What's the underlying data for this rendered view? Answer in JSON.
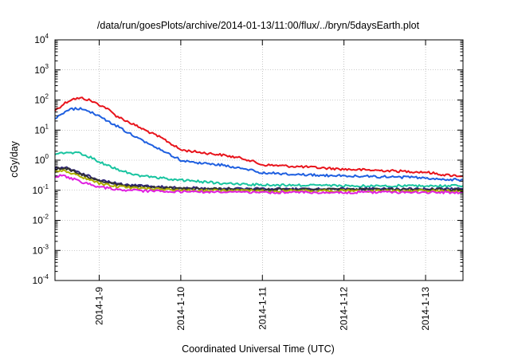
{
  "chart_data": {
    "type": "line",
    "title": "/data/run/goesPlots/archive/2014-01-13/11:00/flux/../bryn/5daysEarth.plot",
    "xlabel": "Coordinated Universal Time (UTC)",
    "ylabel": "cGy/day",
    "yscale": "log",
    "ylim": [
      0.0001,
      10000
    ],
    "xlim": [
      "2014-01-08T11:00",
      "2014-01-13T11:00"
    ],
    "grid": true,
    "legend": "none",
    "y_ticks": [
      {
        "value": 0.0001,
        "base": "10",
        "exp": "-4"
      },
      {
        "value": 0.001,
        "base": "10",
        "exp": "-3"
      },
      {
        "value": 0.01,
        "base": "10",
        "exp": "-2"
      },
      {
        "value": 0.1,
        "base": "10",
        "exp": "-1"
      },
      {
        "value": 1,
        "base": "10",
        "exp": "0"
      },
      {
        "value": 10,
        "base": "10",
        "exp": "1"
      },
      {
        "value": 100,
        "base": "10",
        "exp": "2"
      },
      {
        "value": 1000,
        "base": "10",
        "exp": "3"
      },
      {
        "value": 10000,
        "base": "10",
        "exp": "4"
      }
    ],
    "x_ticks": [
      {
        "value": "2014-01-09T00:00",
        "label": "2014-1-9"
      },
      {
        "value": "2014-01-10T00:00",
        "label": "2014-1-10"
      },
      {
        "value": "2014-01-11T00:00",
        "label": "2014-1-11"
      },
      {
        "value": "2014-01-12T00:00",
        "label": "2014-1-12"
      },
      {
        "value": "2014-01-13T00:00",
        "label": "2014-1-13"
      }
    ],
    "series": [
      {
        "color": "#e8131b",
        "x": [
          "2014-01-08T11:00",
          "2014-01-08T14:00",
          "2014-01-08T16:00",
          "2014-01-08T19:00",
          "2014-01-08T21:00",
          "2014-01-09T00:00",
          "2014-01-09T02:00",
          "2014-01-09T05:00",
          "2014-01-09T12:00",
          "2014-01-09T19:00",
          "2014-01-10T00:00",
          "2014-01-10T06:00",
          "2014-01-10T12:00",
          "2014-01-10T19:00",
          "2014-01-11T00:00",
          "2014-01-11T12:00",
          "2014-01-12T00:00",
          "2014-01-12T12:00",
          "2014-01-13T00:00",
          "2014-01-13T06:00",
          "2014-01-13T11:00"
        ],
        "y": [
          45,
          80,
          108,
          115,
          100,
          70,
          55,
          30,
          12,
          5,
          2.2,
          1.8,
          1.5,
          1.1,
          0.7,
          0.6,
          0.5,
          0.45,
          0.4,
          0.32,
          0.3
        ]
      },
      {
        "color": "#1e5fe0",
        "x": [
          "2014-01-08T11:00",
          "2014-01-08T14:00",
          "2014-01-08T16:00",
          "2014-01-08T19:00",
          "2014-01-08T21:00",
          "2014-01-09T00:00",
          "2014-01-09T02:00",
          "2014-01-09T05:00",
          "2014-01-09T12:00",
          "2014-01-09T19:00",
          "2014-01-10T00:00",
          "2014-01-10T06:00",
          "2014-01-10T12:00",
          "2014-01-10T19:00",
          "2014-01-11T00:00",
          "2014-01-11T12:00",
          "2014-01-12T00:00",
          "2014-01-12T12:00",
          "2014-01-13T00:00",
          "2014-01-13T06:00",
          "2014-01-13T11:00"
        ],
        "y": [
          25,
          40,
          50,
          52,
          42,
          30,
          22,
          14,
          5,
          2,
          1.0,
          0.8,
          0.7,
          0.5,
          0.38,
          0.33,
          0.3,
          0.28,
          0.26,
          0.23,
          0.22
        ]
      },
      {
        "color": "#19c4a0",
        "x": [
          "2014-01-08T11:00",
          "2014-01-08T14:00",
          "2014-01-08T18:00",
          "2014-01-08T21:00",
          "2014-01-09T00:00",
          "2014-01-09T05:00",
          "2014-01-09T12:00",
          "2014-01-10T00:00",
          "2014-01-10T12:00",
          "2014-01-11T00:00",
          "2014-01-12T00:00",
          "2014-01-13T00:00",
          "2014-01-13T11:00"
        ],
        "y": [
          1.6,
          1.8,
          1.7,
          1.3,
          0.9,
          0.5,
          0.3,
          0.22,
          0.17,
          0.15,
          0.14,
          0.14,
          0.14
        ]
      },
      {
        "color": "#30257a",
        "x": [
          "2014-01-08T11:00",
          "2014-01-08T14:00",
          "2014-01-08T18:00",
          "2014-01-09T00:00",
          "2014-01-09T06:00",
          "2014-01-09T12:00",
          "2014-01-10T00:00",
          "2014-01-11T00:00",
          "2014-01-12T00:00",
          "2014-01-13T00:00",
          "2014-01-13T11:00"
        ],
        "y": [
          0.55,
          0.6,
          0.4,
          0.22,
          0.16,
          0.14,
          0.12,
          0.11,
          0.11,
          0.11,
          0.11
        ]
      },
      {
        "color": "#333333",
        "x": [
          "2014-01-08T11:00",
          "2014-01-08T14:00",
          "2014-01-08T18:00",
          "2014-01-09T00:00",
          "2014-01-09T06:00",
          "2014-01-09T12:00",
          "2014-01-10T00:00",
          "2014-01-11T00:00",
          "2014-01-12T00:00",
          "2014-01-13T00:00",
          "2014-01-13T11:00"
        ],
        "y": [
          0.5,
          0.55,
          0.36,
          0.2,
          0.15,
          0.13,
          0.115,
          0.105,
          0.105,
          0.105,
          0.105
        ]
      },
      {
        "color": "#b0b000",
        "x": [
          "2014-01-08T11:00",
          "2014-01-08T14:00",
          "2014-01-08T18:00",
          "2014-01-09T00:00",
          "2014-01-09T06:00",
          "2014-01-09T12:00",
          "2014-01-10T00:00",
          "2014-01-11T00:00",
          "2014-01-12T00:00",
          "2014-01-13T00:00",
          "2014-01-13T11:00"
        ],
        "y": [
          0.42,
          0.45,
          0.3,
          0.17,
          0.13,
          0.115,
          0.1,
          0.095,
          0.095,
          0.095,
          0.095
        ]
      },
      {
        "color": "#e020e0",
        "x": [
          "2014-01-08T11:00",
          "2014-01-08T14:00",
          "2014-01-08T18:00",
          "2014-01-09T00:00",
          "2014-01-09T06:00",
          "2014-01-09T12:00",
          "2014-01-10T00:00",
          "2014-01-11T00:00",
          "2014-01-12T00:00",
          "2014-01-13T00:00",
          "2014-01-13T11:00"
        ],
        "y": [
          0.3,
          0.3,
          0.2,
          0.13,
          0.105,
          0.095,
          0.09,
          0.085,
          0.085,
          0.085,
          0.085
        ]
      }
    ]
  }
}
